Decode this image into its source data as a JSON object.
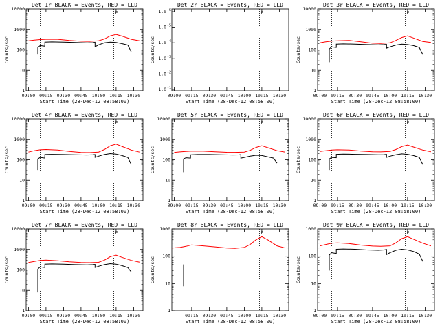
{
  "chart_data": [
    {
      "type": "line",
      "title": "Det 1r BLACK = Events, RED = LLD",
      "xlabel": "Start Time (28-Dec-12 08:58:00)",
      "ylabel": "Counts/sec",
      "yscale": "log",
      "ylim": [
        1,
        10000
      ],
      "yticks": [
        "1",
        "10",
        "100",
        "1000",
        "10000"
      ],
      "xticks": [
        "09:00",
        "09:15",
        "09:30",
        "09:45",
        "10:00",
        "10:15",
        "10:30"
      ],
      "flag": "E",
      "dotted_x": [
        "09:10",
        "10:13"
      ],
      "series": [
        {
          "color": "#ff0000",
          "x": [
            "09:00",
            "09:05",
            "09:10",
            "09:15",
            "09:25",
            "09:35",
            "09:45",
            "09:52",
            "10:00",
            "10:05",
            "10:10",
            "10:15",
            "10:20",
            "10:28",
            "10:35"
          ],
          "values": [
            280,
            300,
            320,
            330,
            330,
            290,
            265,
            262,
            280,
            340,
            480,
            560,
            470,
            330,
            280
          ]
        },
        {
          "color": "#000000",
          "x": [
            "09:08",
            "09:08",
            "09:10",
            "09:14",
            "09:14",
            "09:20",
            "09:30",
            "09:40",
            "09:50",
            "09:55",
            "09:57",
            "09:57",
            "10:00",
            "10:05",
            "10:10",
            "10:15",
            "10:20",
            "10:25",
            "10:28"
          ],
          "values": [
            60,
            130,
            160,
            150,
            240,
            245,
            240,
            230,
            220,
            225,
            235,
            140,
            175,
            220,
            240,
            230,
            200,
            170,
            80
          ]
        }
      ]
    },
    {
      "type": "line",
      "title": "Det 2r BLACK = Events, RED = LLD",
      "xlabel": "Start Time (28-Dec-12 08:58:00)",
      "ylabel": "Counts/sec",
      "yscale": "log",
      "ylim": [
        0.9,
        1.1
      ],
      "yticks": [
        "1.0",
        "1.0",
        "1.0",
        "1.0",
        "1.0",
        "1.0"
      ],
      "ytick_exp": [
        "-1",
        "-2",
        "-3",
        "-4",
        "-5",
        "-6"
      ],
      "xticks": [
        "09:00",
        "09:15",
        "09:30",
        "09:45",
        "10:00",
        "10:15",
        "10:30"
      ],
      "flag": "E",
      "dotted_x": [
        "09:10",
        "10:13"
      ],
      "series": []
    },
    {
      "type": "line",
      "title": "Det 3r BLACK = Events, RED = LLD",
      "xlabel": "Start Time (28-Dec-12 08:58:00)",
      "ylabel": "Counts/sec",
      "yscale": "log",
      "ylim": [
        1,
        10000
      ],
      "yticks": [
        "1",
        "10",
        "100",
        "1000",
        "10000"
      ],
      "xticks": [
        "09:00",
        "09:15",
        "09:30",
        "09:45",
        "10:00",
        "10:15",
        "10:30"
      ],
      "flag": "E",
      "dotted_x": [
        "09:10",
        "10:13"
      ],
      "series": [
        {
          "color": "#ff0000",
          "x": [
            "09:00",
            "09:05",
            "09:10",
            "09:15",
            "09:25",
            "09:35",
            "09:45",
            "09:52",
            "10:00",
            "10:05",
            "10:10",
            "10:15",
            "10:20",
            "10:28",
            "10:35"
          ],
          "values": [
            220,
            250,
            270,
            280,
            290,
            250,
            210,
            205,
            220,
            290,
            400,
            480,
            380,
            260,
            230
          ]
        },
        {
          "color": "#000000",
          "x": [
            "09:08",
            "09:08",
            "09:10",
            "09:14",
            "09:14",
            "09:20",
            "09:30",
            "09:40",
            "09:50",
            "09:55",
            "09:57",
            "09:57",
            "10:00",
            "10:05",
            "10:10",
            "10:15",
            "10:20",
            "10:25",
            "10:28"
          ],
          "values": [
            25,
            110,
            140,
            130,
            190,
            195,
            190,
            180,
            175,
            180,
            185,
            120,
            140,
            170,
            190,
            180,
            160,
            130,
            60
          ]
        }
      ]
    },
    {
      "type": "line",
      "title": "Det 4r BLACK = Events, RED = LLD",
      "xlabel": "Start Time (28-Dec-12 08:58:00)",
      "ylabel": "Counts/sec",
      "yscale": "log",
      "ylim": [
        1,
        10000
      ],
      "yticks": [
        "1",
        "10",
        "100",
        "1000",
        "10000"
      ],
      "xticks": [
        "09:00",
        "09:15",
        "09:30",
        "09:45",
        "10:00",
        "10:15",
        "10:30"
      ],
      "flag": "E",
      "dotted_x": [
        "09:10",
        "10:13"
      ],
      "series": [
        {
          "color": "#ff0000",
          "x": [
            "09:00",
            "09:05",
            "09:10",
            "09:15",
            "09:25",
            "09:35",
            "09:45",
            "09:52",
            "10:00",
            "10:05",
            "10:10",
            "10:15",
            "10:20",
            "10:28",
            "10:35"
          ],
          "values": [
            240,
            280,
            310,
            320,
            300,
            260,
            230,
            225,
            240,
            320,
            480,
            580,
            450,
            300,
            240
          ]
        },
        {
          "color": "#000000",
          "x": [
            "09:08",
            "09:08",
            "09:10",
            "09:14",
            "09:14",
            "09:20",
            "09:30",
            "09:40",
            "09:50",
            "09:55",
            "09:57",
            "09:57",
            "10:00",
            "10:05",
            "10:10",
            "10:15",
            "10:20",
            "10:25",
            "10:28"
          ],
          "values": [
            30,
            110,
            130,
            120,
            180,
            185,
            180,
            175,
            170,
            175,
            180,
            130,
            150,
            180,
            200,
            190,
            160,
            130,
            60
          ]
        }
      ]
    },
    {
      "type": "line",
      "title": "Det 5r BLACK = Events, RED = LLD",
      "xlabel": "Start Time (28-Dec-12 08:58:00)",
      "ylabel": "Counts/sec",
      "yscale": "log",
      "ylim": [
        1,
        10000
      ],
      "yticks": [
        "1",
        "10",
        "100",
        "1000",
        "10000"
      ],
      "xticks": [
        "09:00",
        "09:15",
        "09:30",
        "09:45",
        "10:00",
        "10:15",
        "10:30"
      ],
      "flag": "E",
      "dotted_x": [
        "09:10",
        "10:13"
      ],
      "series": [
        {
          "color": "#ff0000",
          "x": [
            "09:00",
            "09:05",
            "09:10",
            "09:15",
            "09:25",
            "09:35",
            "09:45",
            "09:52",
            "10:00",
            "10:05",
            "10:10",
            "10:15",
            "10:20",
            "10:28",
            "10:35"
          ],
          "values": [
            230,
            245,
            260,
            270,
            265,
            250,
            235,
            232,
            240,
            290,
            400,
            480,
            390,
            280,
            240
          ]
        },
        {
          "color": "#000000",
          "x": [
            "09:08",
            "09:08",
            "09:10",
            "09:14",
            "09:14",
            "09:20",
            "09:30",
            "09:40",
            "09:50",
            "09:55",
            "09:57",
            "09:57",
            "10:00",
            "10:05",
            "10:10",
            "10:15",
            "10:20",
            "10:25",
            "10:28"
          ],
          "values": [
            25,
            110,
            125,
            120,
            175,
            180,
            180,
            175,
            170,
            172,
            178,
            120,
            130,
            150,
            165,
            160,
            140,
            120,
            70
          ]
        }
      ]
    },
    {
      "type": "line",
      "title": "Det 6r BLACK = Events, RED = LLD",
      "xlabel": "Start Time (28-Dec-12 08:58:00)",
      "ylabel": "Counts/sec",
      "yscale": "log",
      "ylim": [
        1,
        10000
      ],
      "yticks": [
        "1",
        "10",
        "100",
        "1000",
        "10000"
      ],
      "xticks": [
        "09:00",
        "09:15",
        "09:30",
        "09:45",
        "10:00",
        "10:15",
        "10:30"
      ],
      "flag": "E",
      "dotted_x": [
        "09:10",
        "10:13"
      ],
      "series": [
        {
          "color": "#ff0000",
          "x": [
            "09:00",
            "09:05",
            "09:10",
            "09:15",
            "09:25",
            "09:35",
            "09:45",
            "09:52",
            "10:00",
            "10:05",
            "10:10",
            "10:15",
            "10:20",
            "10:28",
            "10:35"
          ],
          "values": [
            260,
            280,
            300,
            310,
            300,
            270,
            250,
            245,
            260,
            320,
            440,
            520,
            420,
            300,
            250
          ]
        },
        {
          "color": "#000000",
          "x": [
            "09:08",
            "09:08",
            "09:10",
            "09:14",
            "09:14",
            "09:20",
            "09:30",
            "09:40",
            "09:50",
            "09:55",
            "09:57",
            "09:57",
            "10:00",
            "10:05",
            "10:10",
            "10:15",
            "10:20",
            "10:25",
            "10:28"
          ],
          "values": [
            30,
            110,
            130,
            125,
            185,
            190,
            185,
            180,
            175,
            178,
            185,
            130,
            150,
            175,
            195,
            185,
            160,
            130,
            60
          ]
        }
      ]
    },
    {
      "type": "line",
      "title": "Det 7r BLACK = Events, RED = LLD",
      "xlabel": "Start Time (28-Dec-12 08:58:00)",
      "ylabel": "Counts/sec",
      "yscale": "log",
      "ylim": [
        1,
        10000
      ],
      "yticks": [
        "1",
        "10",
        "100",
        "1000",
        "10000"
      ],
      "xticks": [
        "09:00",
        "09:15",
        "09:30",
        "09:45",
        "10:00",
        "10:15",
        "10:30"
      ],
      "flag": "E",
      "dotted_x": [
        "09:10",
        "10:13"
      ],
      "series": [
        {
          "color": "#ff0000",
          "x": [
            "09:00",
            "09:05",
            "09:10",
            "09:15",
            "09:25",
            "09:35",
            "09:45",
            "09:52",
            "10:00",
            "10:05",
            "10:10",
            "10:15",
            "10:20",
            "10:28",
            "10:35"
          ],
          "values": [
            230,
            260,
            290,
            300,
            280,
            250,
            230,
            225,
            235,
            300,
            440,
            520,
            410,
            290,
            240
          ]
        },
        {
          "color": "#000000",
          "x": [
            "09:08",
            "09:08",
            "09:10",
            "09:14",
            "09:14",
            "09:20",
            "09:30",
            "09:40",
            "09:50",
            "09:55",
            "09:57",
            "09:57",
            "10:00",
            "10:05",
            "10:10",
            "10:15",
            "10:20",
            "10:25",
            "10:28"
          ],
          "values": [
            8,
            110,
            140,
            130,
            190,
            195,
            190,
            180,
            175,
            180,
            185,
            130,
            150,
            180,
            200,
            190,
            160,
            130,
            80
          ]
        }
      ]
    },
    {
      "type": "line",
      "title": "Det 8r BLACK = Events, RED = LLD",
      "xlabel": "Start Time (28-Dec-12 08:58:00)",
      "ylabel": "Counts/sec",
      "yscale": "log",
      "ylim": [
        1,
        1000
      ],
      "yticks": [
        "1",
        "10",
        "100",
        "1000"
      ],
      "xticks": [
        "09:15",
        "09:30",
        "09:45",
        "10:00",
        "10:15",
        "10:30"
      ],
      "flag": "E",
      "dotted_x": [
        "09:10",
        "10:13"
      ],
      "series": [
        {
          "color": "#ff0000",
          "x": [
            "08:58",
            "09:05",
            "09:10",
            "09:15",
            "09:25",
            "09:35",
            "09:45",
            "09:52",
            "10:00",
            "10:05",
            "10:10",
            "10:15",
            "10:20",
            "10:28",
            "10:35"
          ],
          "values": [
            200,
            210,
            230,
            260,
            240,
            220,
            200,
            195,
            210,
            270,
            400,
            520,
            400,
            240,
            200
          ]
        },
        {
          "color": "#000000",
          "x": [
            "09:08",
            "09:08"
          ],
          "values": [
            8,
            50
          ]
        }
      ]
    },
    {
      "type": "line",
      "title": "Det 9r BLACK = Events, RED = LLD",
      "xlabel": "Start Time (28-Dec-12 08:58:00)",
      "ylabel": "Counts/sec",
      "yscale": "log",
      "ylim": [
        1,
        1000
      ],
      "yticks": [
        "1",
        "10",
        "100",
        "1000"
      ],
      "xticks": [
        "09:00",
        "09:15",
        "09:30",
        "09:45",
        "10:00",
        "10:15",
        "10:30"
      ],
      "flag": "E",
      "dotted_x": [
        "09:10",
        "10:13"
      ],
      "series": [
        {
          "color": "#ff0000",
          "x": [
            "09:00",
            "09:05",
            "09:10",
            "09:15",
            "09:25",
            "09:35",
            "09:45",
            "09:52",
            "10:00",
            "10:05",
            "10:10",
            "10:15",
            "10:20",
            "10:28",
            "10:35"
          ],
          "values": [
            240,
            270,
            300,
            310,
            290,
            255,
            235,
            230,
            240,
            310,
            440,
            520,
            420,
            300,
            240
          ]
        },
        {
          "color": "#000000",
          "x": [
            "09:08",
            "09:08",
            "09:10",
            "09:14",
            "09:14",
            "09:20",
            "09:30",
            "09:40",
            "09:50",
            "09:55",
            "09:57",
            "09:57",
            "10:00",
            "10:05",
            "10:10",
            "10:15",
            "10:20",
            "10:25",
            "10:28"
          ],
          "values": [
            30,
            110,
            135,
            125,
            180,
            185,
            180,
            170,
            165,
            170,
            178,
            115,
            135,
            165,
            180,
            170,
            150,
            120,
            65
          ]
        }
      ]
    }
  ]
}
